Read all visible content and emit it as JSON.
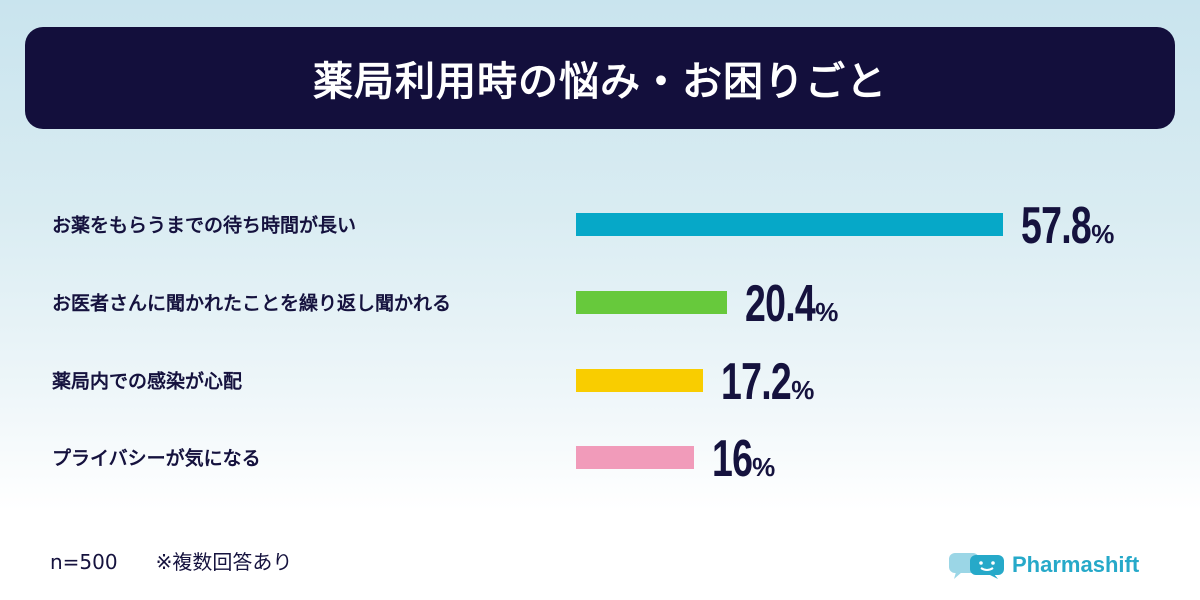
{
  "header": {
    "title": "薬局利用時の悩み・お困りごと"
  },
  "chart_data": {
    "type": "bar",
    "orientation": "horizontal",
    "title": "薬局利用時の悩み・お困りごと",
    "categories": [
      "お薬をもらうまでの待ち時間が長い",
      "お医者さんに聞かれたことを繰り返し聞かれる",
      "薬局内での感染が心配",
      "プライバシーが気になる"
    ],
    "values": [
      57.8,
      20.4,
      17.2,
      16
    ],
    "value_labels": [
      "57.8",
      "20.4",
      "17.2",
      "16"
    ],
    "unit": "%",
    "colors": [
      "#06a8c8",
      "#67c93c",
      "#f9cd00",
      "#f19bba"
    ],
    "xlim": [
      0,
      57.8
    ],
    "grid": false,
    "legend": "none"
  },
  "footer": {
    "sample": "n=500",
    "note": "※複数回答あり",
    "logo_text": "Pharmashift",
    "logo_icon": "speech-bubbles-icon"
  }
}
